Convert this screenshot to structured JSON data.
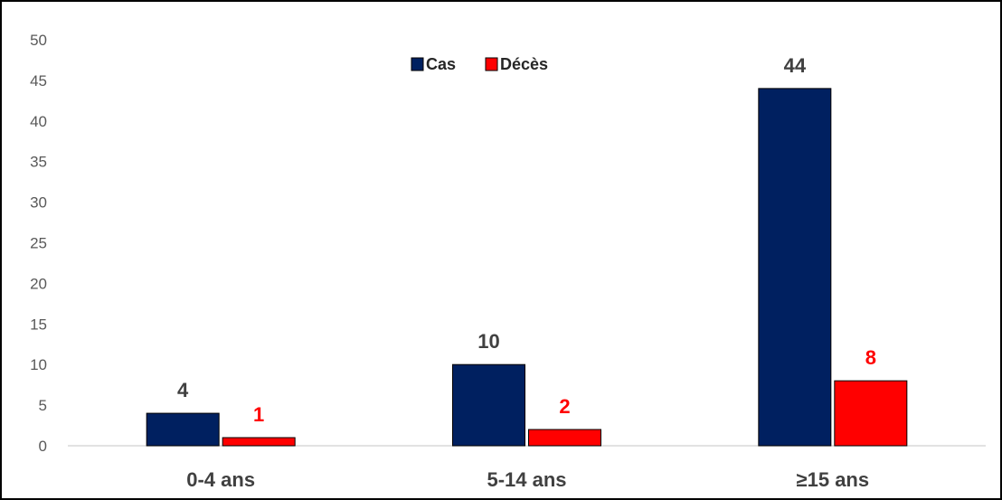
{
  "chart_data": {
    "type": "bar",
    "categories": [
      "0-4 ans",
      "5-14 ans",
      "≥15 ans"
    ],
    "series": [
      {
        "name": "Cas",
        "values": [
          4,
          10,
          44
        ],
        "color": "#002060",
        "label_color": "#404040"
      },
      {
        "name": "Décès",
        "values": [
          1,
          2,
          8
        ],
        "color": "#ff0000",
        "label_color": "#ff0000"
      }
    ],
    "ylim": [
      0,
      50
    ],
    "yticks": [
      0,
      5,
      10,
      15,
      20,
      25,
      30,
      35,
      40,
      45,
      50
    ],
    "grid": false,
    "legend_position": "top-center",
    "title": "",
    "xlabel": "",
    "ylabel": ""
  }
}
